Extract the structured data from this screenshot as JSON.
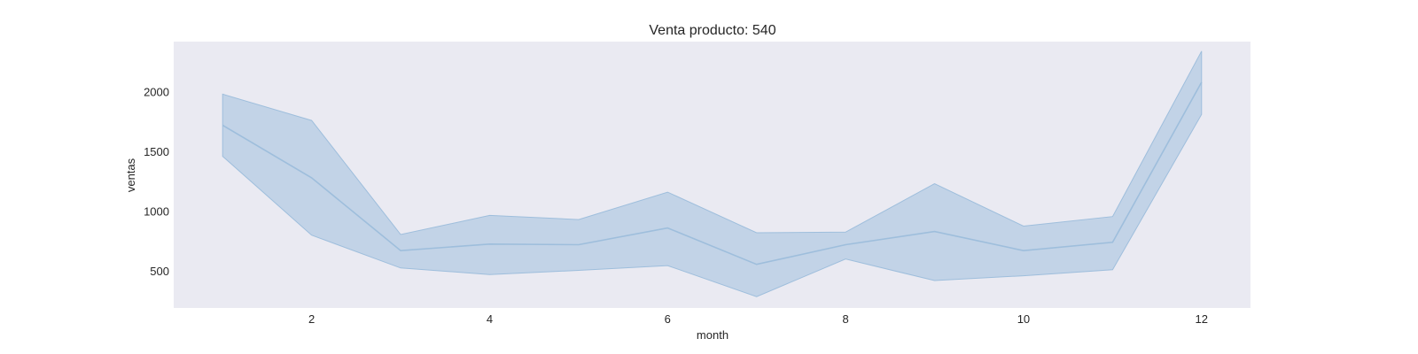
{
  "chart_data": {
    "type": "line",
    "title": "Venta producto: 540",
    "xlabel": "month",
    "ylabel": "ventas",
    "xlim": [
      0.45,
      12.55
    ],
    "ylim": [
      190,
      2420
    ],
    "x_ticks": [
      2,
      4,
      6,
      8,
      10,
      12
    ],
    "y_ticks": [
      500,
      1000,
      1500,
      2000
    ],
    "grid": false,
    "colors": {
      "background": "#eaeaf2",
      "line": "#9ebedc",
      "band": "#b8cde3"
    },
    "series": [
      {
        "x": [
          1,
          2,
          3,
          4,
          5,
          6,
          7,
          8,
          9,
          10,
          11,
          12
        ],
        "y": [
          1720,
          1280,
          670,
          725,
          720,
          860,
          555,
          720,
          830,
          670,
          740,
          2080
        ],
        "lower": [
          1460,
          800,
          525,
          470,
          505,
          545,
          285,
          600,
          420,
          460,
          510,
          1810
        ],
        "upper": [
          1980,
          1760,
          805,
          965,
          930,
          1160,
          820,
          825,
          1230,
          875,
          955,
          2340
        ]
      }
    ]
  }
}
